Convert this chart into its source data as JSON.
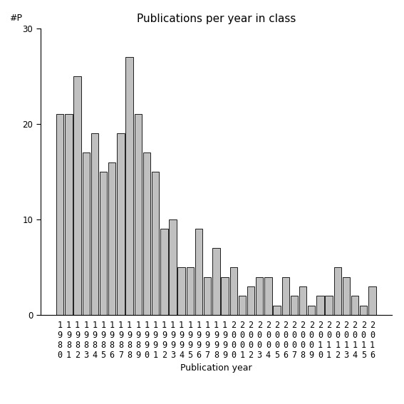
{
  "title": "Publications per year in class",
  "xlabel": "Publication year",
  "ylabel": "#P",
  "bar_color": "#c0c0c0",
  "bar_edge_color": "#000000",
  "ylim": [
    0,
    30
  ],
  "yticks": [
    0,
    10,
    20,
    30
  ],
  "years": [
    1980,
    1981,
    1982,
    1983,
    1984,
    1985,
    1986,
    1987,
    1988,
    1989,
    1990,
    1991,
    1992,
    1993,
    1994,
    1995,
    1996,
    1997,
    1998,
    1999,
    2000,
    2001,
    2002,
    2003,
    2004,
    2005,
    2006,
    2007,
    2008,
    2009,
    2010,
    2011,
    2012,
    2013,
    2014,
    2015,
    2016
  ],
  "values": [
    21,
    21,
    25,
    17,
    19,
    15,
    16,
    19,
    27,
    21,
    17,
    15,
    9,
    10,
    5,
    5,
    9,
    4,
    7,
    4,
    5,
    2,
    3,
    4,
    4,
    1,
    4,
    2,
    3,
    1,
    2,
    2,
    5,
    4,
    2,
    1,
    3
  ],
  "background_color": "#ffffff",
  "title_fontsize": 11,
  "label_fontsize": 9,
  "tick_fontsize": 8.5
}
